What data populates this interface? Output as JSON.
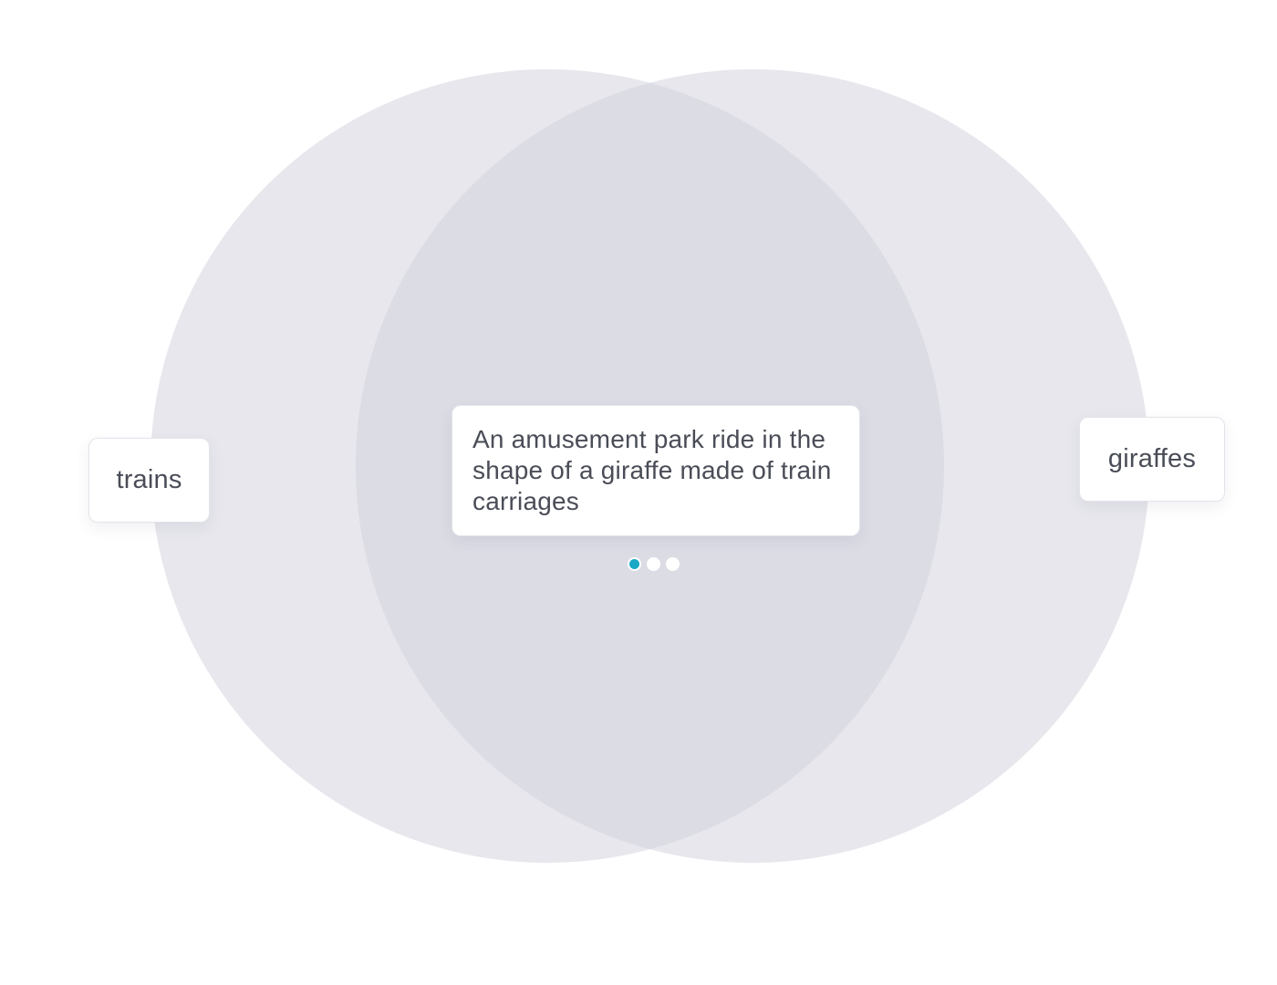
{
  "venn": {
    "left_set_label": "trains",
    "right_set_label": "giraffes",
    "intersection_text": "An amusement park ride in the shape of a giraffe made of train carriages",
    "circle_color": "#d4d4de",
    "circle_opacity": 0.55
  },
  "pager": {
    "total": 3,
    "active_index": 0,
    "active_color": "#1aa8c6",
    "inactive_color": "#ffffff"
  }
}
